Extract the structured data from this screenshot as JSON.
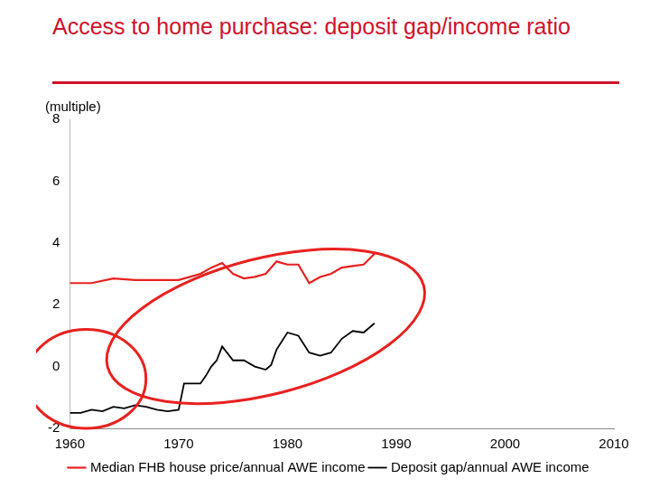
{
  "chart_data": {
    "type": "line",
    "title": "Access to home purchase: deposit gap/income ratio",
    "y_label": "(multiple)",
    "xlim": [
      1960,
      2010
    ],
    "xticks": [
      1960,
      1970,
      1980,
      1990,
      2000,
      2010
    ],
    "ylim": [
      -2,
      8
    ],
    "yticks": [
      -2,
      0,
      2,
      4,
      6,
      8
    ],
    "grid": false,
    "legend": "bottom",
    "series": [
      {
        "name": "Median FHB house price/annual AWE income",
        "color": "#e8211f",
        "x": [
          1960,
          1962,
          1964,
          1966,
          1968,
          1970,
          1972,
          1973,
          1974,
          1975,
          1976,
          1977,
          1978,
          1979,
          1980,
          1981,
          1982,
          1983,
          1984,
          1985,
          1986,
          1987,
          1988
        ],
        "values": [
          2.7,
          2.7,
          2.85,
          2.8,
          2.8,
          2.8,
          3.0,
          3.2,
          3.35,
          3.0,
          2.85,
          2.9,
          3.0,
          3.4,
          3.3,
          3.3,
          2.7,
          2.9,
          3.0,
          3.2,
          3.25,
          3.3,
          3.65
        ]
      },
      {
        "name": "Deposit gap/annual AWE income",
        "color": "#000000",
        "x": [
          1960,
          1961,
          1962,
          1963,
          1964,
          1965,
          1966,
          1967,
          1968,
          1969,
          1970,
          1970.5,
          1971,
          1972,
          1972.5,
          1973,
          1973.5,
          1974,
          1975,
          1976,
          1977,
          1978,
          1978.5,
          1979,
          1980,
          1981,
          1982,
          1983,
          1984,
          1985,
          1986,
          1987,
          1988
        ],
        "values": [
          -1.5,
          -1.5,
          -1.4,
          -1.45,
          -1.3,
          -1.35,
          -1.25,
          -1.3,
          -1.4,
          -1.45,
          -1.4,
          -0.55,
          -0.55,
          -0.55,
          -0.3,
          0.0,
          0.2,
          0.65,
          0.2,
          0.2,
          0.0,
          -0.1,
          0.05,
          0.55,
          1.1,
          1.0,
          0.45,
          0.35,
          0.45,
          0.9,
          1.15,
          1.1,
          1.4
        ]
      }
    ]
  }
}
